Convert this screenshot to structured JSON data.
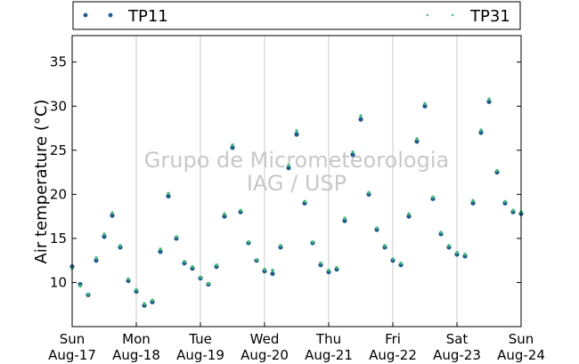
{
  "chart_data": {
    "type": "scatter",
    "ylabel": "Air temperature (°C)",
    "ylim": [
      5,
      38
    ],
    "yticks": [
      10,
      15,
      20,
      25,
      30,
      35
    ],
    "xlim": [
      "2014-08-17T00:00",
      "2014-08-24T00:00"
    ],
    "xticks": [
      {
        "day": "Sun",
        "date": "Aug-17"
      },
      {
        "day": "Mon",
        "date": "Aug-18"
      },
      {
        "day": "Tue",
        "date": "Aug-19"
      },
      {
        "day": "Wed",
        "date": "Aug-20"
      },
      {
        "day": "Thu",
        "date": "Aug-21"
      },
      {
        "day": "Fri",
        "date": "Aug-22"
      },
      {
        "day": "Sat",
        "date": "Aug-23"
      },
      {
        "day": "Sun",
        "date": "Aug-24"
      }
    ],
    "grid": "vertical",
    "legend_position": "top",
    "watermark": [
      "Grupo de Micrometeorologia",
      "IAG / USP"
    ],
    "series": [
      {
        "name": "TP11",
        "color": "#1f5a8c",
        "marker": "large-dot",
        "x": [
          "2014-08-17T00:00",
          "2014-08-17T03:00",
          "2014-08-17T06:00",
          "2014-08-17T09:00",
          "2014-08-17T12:00",
          "2014-08-17T15:00",
          "2014-08-17T18:00",
          "2014-08-17T21:00",
          "2014-08-18T00:00",
          "2014-08-18T03:00",
          "2014-08-18T06:00",
          "2014-08-18T09:00",
          "2014-08-18T12:00",
          "2014-08-18T15:00",
          "2014-08-18T18:00",
          "2014-08-18T21:00",
          "2014-08-19T00:00",
          "2014-08-19T03:00",
          "2014-08-19T06:00",
          "2014-08-19T09:00",
          "2014-08-19T12:00",
          "2014-08-19T15:00",
          "2014-08-19T18:00",
          "2014-08-19T21:00",
          "2014-08-20T00:00",
          "2014-08-20T03:00",
          "2014-08-20T06:00",
          "2014-08-20T09:00",
          "2014-08-20T12:00",
          "2014-08-20T15:00",
          "2014-08-20T18:00",
          "2014-08-20T21:00",
          "2014-08-21T00:00",
          "2014-08-21T03:00",
          "2014-08-21T06:00",
          "2014-08-21T09:00",
          "2014-08-21T12:00",
          "2014-08-21T15:00",
          "2014-08-21T18:00",
          "2014-08-21T21:00",
          "2014-08-22T00:00",
          "2014-08-22T03:00",
          "2014-08-22T06:00",
          "2014-08-22T09:00",
          "2014-08-22T12:00",
          "2014-08-22T15:00",
          "2014-08-22T18:00",
          "2014-08-22T21:00",
          "2014-08-23T00:00",
          "2014-08-23T03:00",
          "2014-08-23T06:00",
          "2014-08-23T09:00",
          "2014-08-23T12:00",
          "2014-08-23T15:00",
          "2014-08-23T18:00",
          "2014-08-23T21:00",
          "2014-08-24T00:00"
        ],
        "y": [
          11.8,
          9.8,
          8.6,
          12.5,
          15.2,
          17.6,
          14.0,
          10.2,
          9.0,
          7.4,
          7.8,
          13.5,
          19.8,
          15.0,
          12.2,
          11.6,
          10.5,
          9.8,
          11.8,
          17.5,
          25.3,
          18.0,
          14.5,
          12.5,
          11.3,
          11.0,
          14.0,
          23.0,
          26.8,
          19.0,
          14.5,
          12.0,
          11.2,
          11.5,
          17.0,
          24.5,
          28.5,
          20.0,
          16.0,
          14.0,
          12.5,
          12.0,
          17.5,
          26.0,
          30.0,
          19.5,
          15.5,
          14.0,
          13.2,
          13.0,
          19.0,
          27.0,
          30.5,
          22.5,
          19.0,
          18.0,
          17.8
        ]
      },
      {
        "name": "TP31",
        "color": "#3dba78",
        "marker": "small-dot",
        "x": [
          "2014-08-17T00:00",
          "2014-08-17T03:00",
          "2014-08-17T06:00",
          "2014-08-17T09:00",
          "2014-08-17T12:00",
          "2014-08-17T15:00",
          "2014-08-17T18:00",
          "2014-08-17T21:00",
          "2014-08-18T00:00",
          "2014-08-18T03:00",
          "2014-08-18T06:00",
          "2014-08-18T09:00",
          "2014-08-18T12:00",
          "2014-08-18T15:00",
          "2014-08-18T18:00",
          "2014-08-18T21:00",
          "2014-08-19T00:00",
          "2014-08-19T03:00",
          "2014-08-19T06:00",
          "2014-08-19T09:00",
          "2014-08-19T12:00",
          "2014-08-19T15:00",
          "2014-08-19T18:00",
          "2014-08-19T21:00",
          "2014-08-20T00:00",
          "2014-08-20T03:00",
          "2014-08-20T06:00",
          "2014-08-20T09:00",
          "2014-08-20T12:00",
          "2014-08-20T15:00",
          "2014-08-20T18:00",
          "2014-08-20T21:00",
          "2014-08-21T00:00",
          "2014-08-21T03:00",
          "2014-08-21T06:00",
          "2014-08-21T09:00",
          "2014-08-21T12:00",
          "2014-08-21T15:00",
          "2014-08-21T18:00",
          "2014-08-21T21:00",
          "2014-08-22T00:00",
          "2014-08-22T03:00",
          "2014-08-22T06:00",
          "2014-08-22T09:00",
          "2014-08-22T12:00",
          "2014-08-22T15:00",
          "2014-08-22T18:00",
          "2014-08-22T21:00",
          "2014-08-23T00:00",
          "2014-08-23T03:00",
          "2014-08-23T06:00",
          "2014-08-23T09:00",
          "2014-08-23T12:00",
          "2014-08-23T15:00",
          "2014-08-23T18:00",
          "2014-08-23T21:00",
          "2014-08-24T00:00"
        ],
        "y": [
          11.6,
          9.6,
          8.7,
          12.8,
          15.5,
          17.9,
          14.2,
          10.4,
          9.2,
          7.6,
          8.0,
          13.8,
          20.1,
          15.2,
          12.4,
          11.8,
          10.6,
          9.9,
          12.0,
          17.8,
          25.6,
          18.2,
          14.6,
          12.6,
          11.5,
          11.4,
          14.2,
          23.3,
          27.2,
          19.2,
          14.6,
          12.2,
          11.4,
          11.7,
          17.3,
          24.8,
          28.9,
          20.2,
          16.2,
          14.2,
          12.7,
          12.2,
          17.8,
          26.3,
          30.3,
          19.7,
          15.7,
          14.2,
          13.4,
          13.2,
          19.3,
          27.3,
          30.8,
          22.7,
          19.2,
          18.2,
          18.0
        ]
      }
    ]
  }
}
